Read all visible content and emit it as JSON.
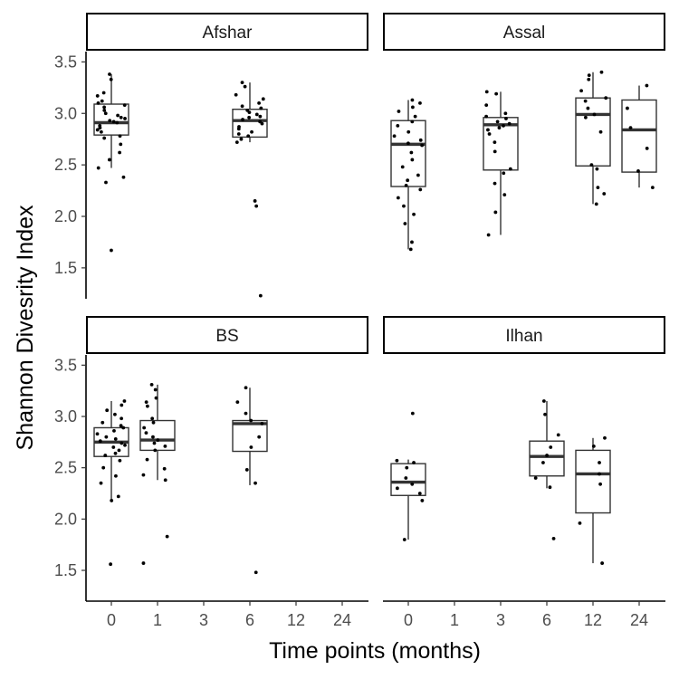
{
  "chart_data": {
    "type": "box",
    "xlabel": "Time points (months)",
    "ylabel": "Shannon Divesrity Index",
    "x_categories": [
      "0",
      "1",
      "3",
      "6",
      "12",
      "24"
    ],
    "y_ticks": [
      "1.5",
      "2.0",
      "2.5",
      "3.0",
      "3.5"
    ],
    "ylim": [
      1.2,
      3.6
    ],
    "grid": false,
    "panels": [
      {
        "name": "Afshar",
        "boxes": [
          {
            "x": "0",
            "q1": 2.79,
            "median": 2.91,
            "q3": 3.09,
            "whisker_low": 2.47,
            "whisker_high": 3.38,
            "points": [
              3.38,
              3.33,
              3.2,
              3.17,
              3.12,
              3.1,
              3.08,
              3.06,
              3.03,
              3.0,
              2.98,
              2.96,
              2.95,
              2.93,
              2.92,
              2.91,
              2.88,
              2.86,
              2.84,
              2.82,
              2.78,
              2.76,
              2.7,
              2.62,
              2.55,
              2.47,
              2.38,
              2.33,
              1.67
            ]
          },
          {
            "x": "6",
            "q1": 2.77,
            "median": 2.93,
            "q3": 3.04,
            "whisker_low": 2.72,
            "whisker_high": 3.3,
            "points": [
              3.3,
              3.26,
              3.18,
              3.14,
              3.1,
              3.07,
              3.05,
              3.03,
              3.01,
              2.99,
              2.97,
              2.96,
              2.94,
              2.92,
              2.9,
              2.87,
              2.85,
              2.82,
              2.8,
              2.78,
              2.75,
              2.72,
              2.15,
              2.1,
              1.23
            ]
          }
        ]
      },
      {
        "name": "Assal",
        "boxes": [
          {
            "x": "0",
            "q1": 2.29,
            "median": 2.7,
            "q3": 2.93,
            "whisker_low": 1.68,
            "whisker_high": 3.13,
            "points": [
              3.13,
              3.1,
              3.06,
              3.02,
              2.97,
              2.92,
              2.88,
              2.82,
              2.78,
              2.74,
              2.71,
              2.69,
              2.62,
              2.55,
              2.48,
              2.4,
              2.35,
              2.3,
              2.26,
              2.18,
              2.1,
              2.02,
              1.93,
              1.75,
              1.68
            ]
          },
          {
            "x": "3",
            "q1": 2.45,
            "median": 2.89,
            "q3": 2.96,
            "whisker_low": 1.82,
            "whisker_high": 3.21,
            "points": [
              3.21,
              3.19,
              3.08,
              3.0,
              2.97,
              2.95,
              2.92,
              2.9,
              2.88,
              2.86,
              2.84,
              2.8,
              2.72,
              2.63,
              2.46,
              2.42,
              2.32,
              2.21,
              2.04,
              1.82
            ]
          },
          {
            "x": "12",
            "q1": 2.49,
            "median": 2.99,
            "q3": 3.15,
            "whisker_low": 2.12,
            "whisker_high": 3.4,
            "points": [
              3.4,
              3.37,
              3.33,
              3.22,
              3.15,
              3.12,
              3.05,
              2.99,
              2.96,
              2.82,
              2.5,
              2.46,
              2.28,
              2.22,
              2.12
            ]
          },
          {
            "x": "24",
            "q1": 2.43,
            "median": 2.84,
            "q3": 3.13,
            "whisker_low": 2.28,
            "whisker_high": 3.27,
            "points": [
              3.27,
              3.05,
              2.86,
              2.66,
              2.44,
              2.28
            ]
          }
        ]
      },
      {
        "name": "BS",
        "boxes": [
          {
            "x": "0",
            "q1": 2.61,
            "median": 2.75,
            "q3": 2.89,
            "whisker_low": 2.19,
            "whisker_high": 3.15,
            "points": [
              3.15,
              3.11,
              3.06,
              3.02,
              2.98,
              2.94,
              2.91,
              2.89,
              2.86,
              2.83,
              2.8,
              2.78,
              2.76,
              2.74,
              2.72,
              2.7,
              2.67,
              2.64,
              2.62,
              2.57,
              2.5,
              2.42,
              2.35,
              2.22,
              2.18,
              1.56
            ]
          },
          {
            "x": "1",
            "q1": 2.67,
            "median": 2.77,
            "q3": 2.96,
            "whisker_low": 2.38,
            "whisker_high": 3.31,
            "points": [
              3.31,
              3.26,
              3.18,
              3.14,
              3.1,
              2.98,
              2.94,
              2.89,
              2.84,
              2.8,
              2.77,
              2.74,
              2.71,
              2.67,
              2.58,
              2.49,
              2.43,
              2.38,
              1.83,
              1.57
            ]
          },
          {
            "x": "6",
            "q1": 2.66,
            "median": 2.93,
            "q3": 2.96,
            "whisker_low": 2.33,
            "whisker_high": 3.28,
            "points": [
              3.28,
              3.14,
              3.03,
              2.96,
              2.93,
              2.8,
              2.7,
              2.48,
              2.35,
              1.48
            ]
          }
        ]
      },
      {
        "name": "Ilhan",
        "boxes": [
          {
            "x": "0",
            "q1": 2.23,
            "median": 2.36,
            "q3": 2.54,
            "whisker_low": 1.8,
            "whisker_high": 2.58,
            "points": [
              3.03,
              2.57,
              2.55,
              2.5,
              2.4,
              2.34,
              2.3,
              2.25,
              2.18,
              1.8
            ]
          },
          {
            "x": "6",
            "q1": 2.42,
            "median": 2.61,
            "q3": 2.76,
            "whisker_low": 2.3,
            "whisker_high": 3.15,
            "points": [
              3.15,
              3.02,
              2.82,
              2.7,
              2.62,
              2.55,
              2.4,
              2.31,
              1.81
            ]
          },
          {
            "x": "12",
            "q1": 2.06,
            "median": 2.44,
            "q3": 2.67,
            "whisker_low": 1.57,
            "whisker_high": 2.79,
            "points": [
              2.79,
              2.71,
              2.55,
              2.44,
              2.34,
              1.96,
              1.57
            ]
          }
        ]
      }
    ]
  }
}
